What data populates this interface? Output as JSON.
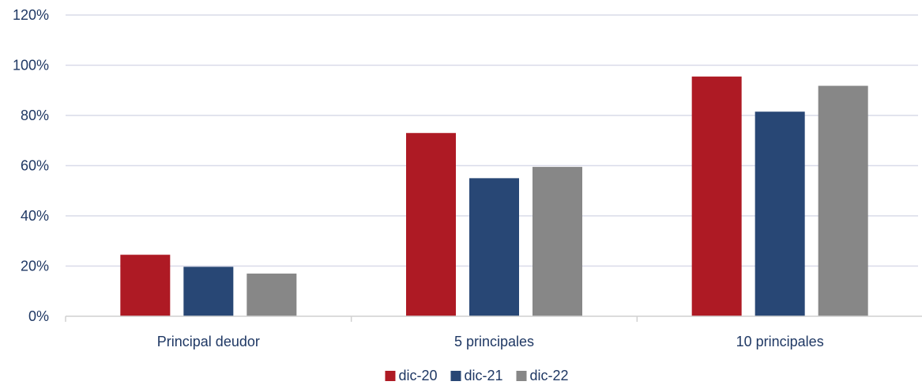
{
  "chart_data": {
    "type": "bar",
    "title": "",
    "xlabel": "",
    "ylabel": "",
    "categories": [
      "Principal deudor",
      "5 principales",
      "10 principales"
    ],
    "series": [
      {
        "name": "dic-20",
        "values": [
          24.5,
          73.0,
          95.5
        ],
        "color": "#ae1a24"
      },
      {
        "name": "dic-21",
        "values": [
          19.7,
          55.0,
          81.5
        ],
        "color": "#284775"
      },
      {
        "name": "dic-22",
        "values": [
          17.0,
          59.5,
          91.8
        ],
        "color": "#878787"
      }
    ],
    "ylim": [
      0,
      120
    ],
    "yticks": [
      0,
      20,
      40,
      60,
      80,
      100,
      120
    ],
    "ytick_labels": [
      "0%",
      "20%",
      "40%",
      "60%",
      "80%",
      "100%",
      "120%"
    ],
    "grid": true,
    "legend_position": "bottom",
    "colors": {
      "gridline": "#d9dbe9",
      "axis": "#d0d0d0",
      "text": "#1f3864"
    }
  }
}
